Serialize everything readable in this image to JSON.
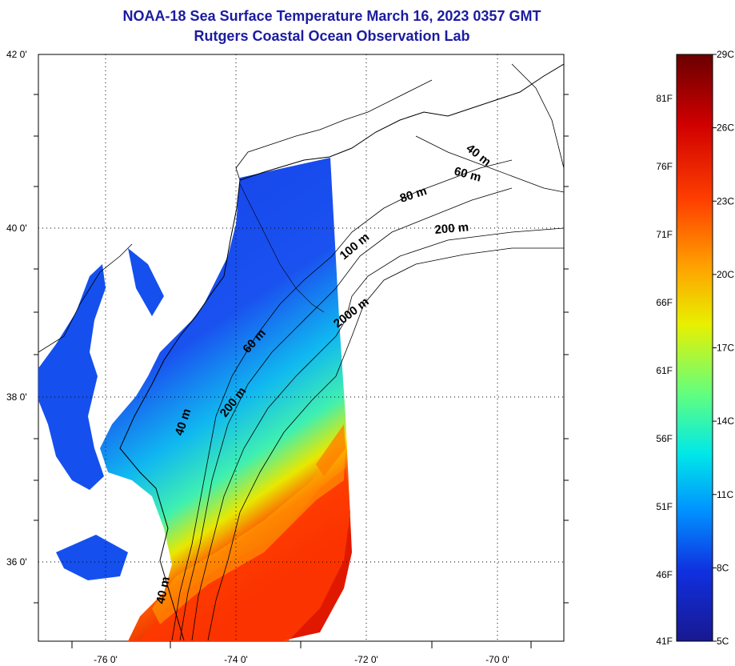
{
  "title": "NOAA-18 Sea Surface Temperature March 16, 2023 0357 GMT",
  "subtitle": "Rutgers Coastal Ocean Observation Lab",
  "lat_ticks": [
    "42 0'",
    "40 0'",
    "38 0'",
    "36 0'"
  ],
  "lon_ticks": [
    "-76 0'",
    "-74 0'",
    "-72 0'",
    "-70 0'"
  ],
  "contour_labels": [
    "40 m",
    "60 m",
    "80 m",
    "200 m",
    "100 m",
    "2000 m",
    "60 m",
    "200 m",
    "40 m",
    "40 m"
  ],
  "colorbar": {
    "celsius": [
      "29C",
      "26C",
      "23C",
      "20C",
      "17C",
      "14C",
      "11C",
      "8C",
      "5C"
    ],
    "fahrenheit": [
      "81F",
      "76F",
      "71F",
      "66F",
      "61F",
      "56F",
      "51F",
      "46F",
      "41F"
    ],
    "colors": [
      "#7a0000",
      "#c80000",
      "#ff3a00",
      "#ff9a00",
      "#e8e800",
      "#7fff5a",
      "#00e8e0",
      "#0090ff",
      "#1030e0",
      "#1a1a9a"
    ]
  }
}
